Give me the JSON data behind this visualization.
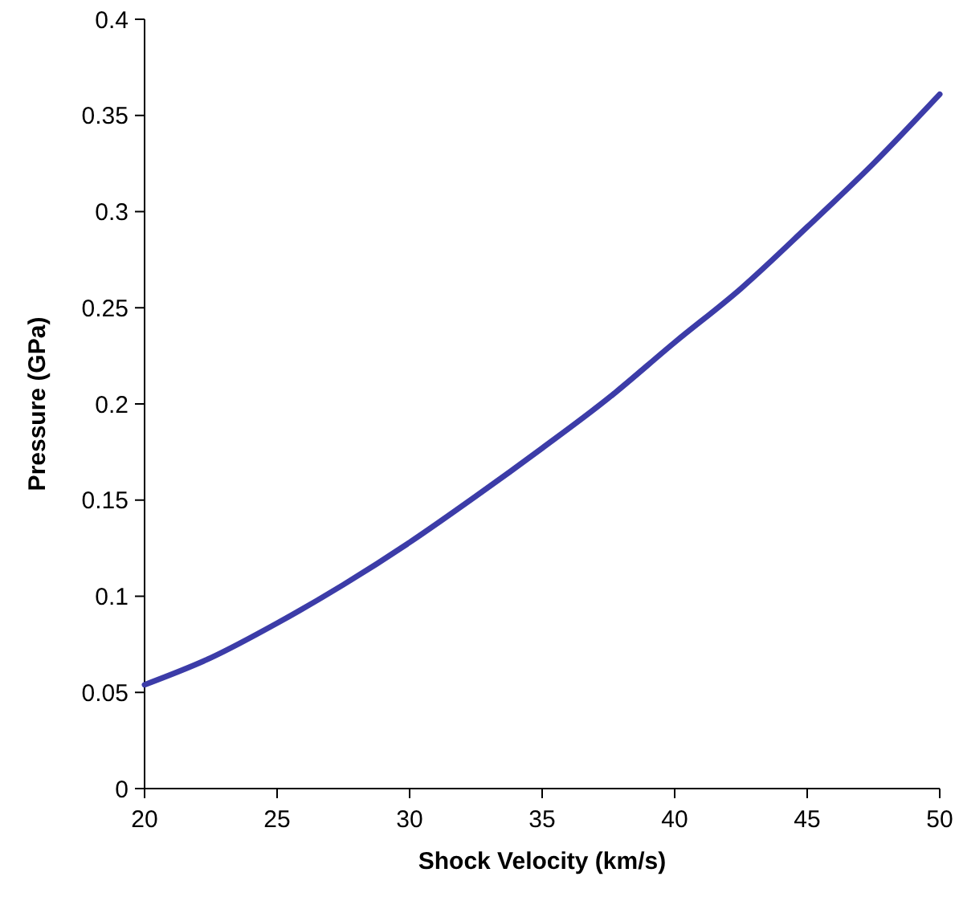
{
  "chart_data": {
    "type": "line",
    "xlabel": "Shock Velocity (km/s)",
    "ylabel": "Pressure (GPa)",
    "x": [
      20,
      22.5,
      25,
      27.5,
      30,
      32.5,
      35,
      37.5,
      40,
      42.5,
      45,
      47.5,
      50
    ],
    "series": [
      {
        "color": "#3c3ca8",
        "values": [
          0.054,
          0.068,
          0.086,
          0.106,
          0.128,
          0.152,
          0.177,
          0.203,
          0.232,
          0.26,
          0.292,
          0.325,
          0.361
        ]
      }
    ],
    "xlim": [
      20,
      50
    ],
    "xticks": [
      20,
      25,
      30,
      35,
      40,
      45,
      50
    ],
    "ylim": [
      0,
      0.4
    ],
    "yticks": [
      0,
      0.05,
      0.1,
      0.15,
      0.2,
      0.25,
      0.3,
      0.35,
      0.4
    ],
    "marker": "none",
    "line_style": "solid"
  }
}
